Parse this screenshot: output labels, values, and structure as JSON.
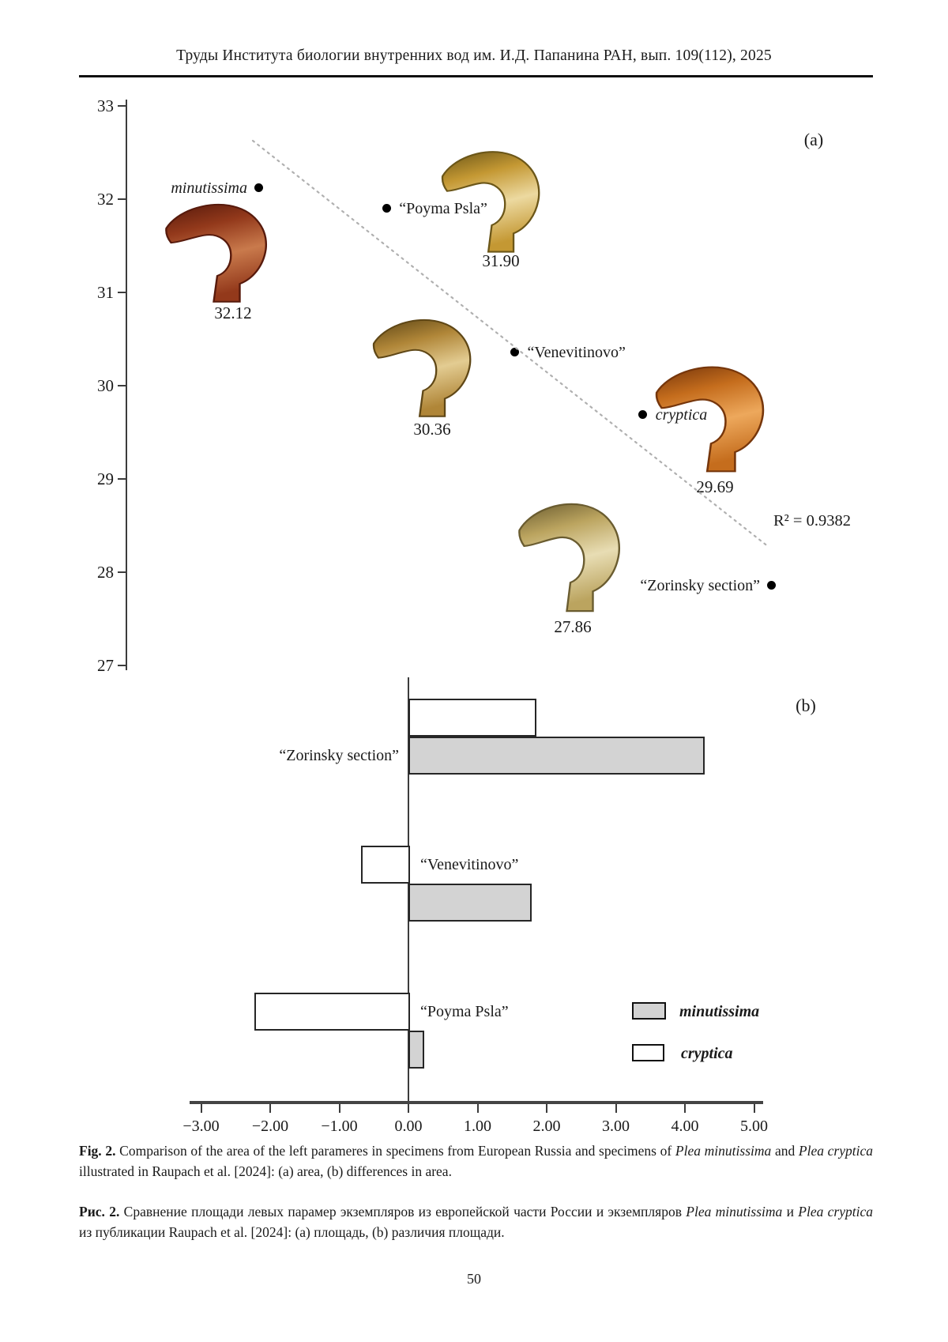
{
  "header": {
    "journal_line": "Труды Института биологии внутренних вод им. И.Д. Папанина РАН, вып. 109(112), 2025"
  },
  "page_number": "50",
  "panel_a": {
    "tag": "(a)",
    "r_squared": "R² = 0.9382",
    "y_ticks": [
      "33",
      "32",
      "31",
      "30",
      "29",
      "28",
      "27"
    ],
    "points": [
      {
        "label": "minutissima",
        "italic": true,
        "side": "left",
        "value": 32.12,
        "value_label": "32.12",
        "specimen": "minutissima-paramere"
      },
      {
        "label": "“Poyma Psla”",
        "italic": false,
        "side": "right",
        "value": 31.9,
        "value_label": "31.90",
        "specimen": "poyma-psla-paramere"
      },
      {
        "label": "“Venevitinovo”",
        "italic": false,
        "side": "right",
        "value": 30.36,
        "value_label": "30.36",
        "specimen": "venevitinovo-paramere"
      },
      {
        "label": "cryptica",
        "italic": true,
        "side": "right",
        "value": 29.69,
        "value_label": "29.69",
        "specimen": "cryptica-paramere"
      },
      {
        "label": "“Zorinsky section”",
        "italic": false,
        "side": "left",
        "value": 27.86,
        "value_label": "27.86",
        "specimen": "zorinsky-paramere"
      }
    ]
  },
  "panel_b": {
    "tag": "(b)",
    "x_tick_values": [
      -3,
      -2,
      -1,
      0,
      1,
      2,
      3,
      4,
      5
    ],
    "x_ticks": [
      "−3.00",
      "−2.00",
      "−1.00",
      "0.00",
      "1.00",
      "2.00",
      "3.00",
      "4.00",
      "5.00"
    ],
    "categories": [
      {
        "label": "“Zorinsky section”",
        "cryptica": 1.83,
        "minutissima": 4.26
      },
      {
        "label": "“Venevitinovo”",
        "cryptica": -0.69,
        "minutissima": 1.76
      },
      {
        "label": "“Poyma Psla”",
        "cryptica": -2.23,
        "minutissima": 0.21
      }
    ],
    "legend": [
      {
        "label": "minutissima",
        "fill": "#d3d3d3"
      },
      {
        "label": "cryptica",
        "fill": "#ffffff"
      }
    ]
  },
  "colors": {
    "bar_gray": "#d3d3d3",
    "bar_border": "#262626",
    "axis": "#3c3c3c",
    "trendline": "#b0b0b0",
    "dot": "#000000"
  },
  "specimen_colors": [
    {
      "name": "minutissima-paramere",
      "edge": "#571a0c",
      "body": "#93391b",
      "light": "#c97a4c"
    },
    {
      "name": "poyma-psla-paramere",
      "edge": "#6b5618",
      "body": "#c49833",
      "light": "#ecd9a0"
    },
    {
      "name": "venevitinovo-paramere",
      "edge": "#5f4716",
      "body": "#b08638",
      "light": "#e3cc92"
    },
    {
      "name": "cryptica-paramere",
      "edge": "#76360b",
      "body": "#c56d1d",
      "light": "#eda85c"
    },
    {
      "name": "zorinsky-paramere",
      "edge": "#6a5c30",
      "body": "#bba45f",
      "light": "#e8ddb4"
    }
  ],
  "caption_en": [
    {
      "t": "Fig. 2.",
      "b": true
    },
    {
      "t": " Comparison of the area of the left parameres in specimens from European Russia and specimens of "
    },
    {
      "t": "Plea minutissima",
      "i": true
    },
    {
      "t": " and "
    },
    {
      "t": "Plea cryptica",
      "i": true
    },
    {
      "t": " illustrated in Raupach et al. [2024]: (a) area, (b) differences in area."
    }
  ],
  "caption_ru": [
    {
      "t": "Рис. 2.",
      "b": true
    },
    {
      "t": " Сравнение площади левых парамер экземпляров из европейской части России и экземпляров "
    },
    {
      "t": "Plea minutissima",
      "i": true
    },
    {
      "t": " и "
    },
    {
      "t": "Plea cryptica",
      "i": true
    },
    {
      "t": " из публикации Raupach et al. [2024]: (a) площадь, (b) различия площади."
    }
  ],
  "chart_data": [
    {
      "type": "scatter",
      "title": "(a) area of left paramere",
      "ylim": [
        27,
        33
      ],
      "y_ticks": [
        33,
        32,
        31,
        30,
        29,
        28,
        27
      ],
      "points": [
        {
          "label": "minutissima",
          "y": 32.12
        },
        {
          "label": "Poyma Psla",
          "y": 31.9
        },
        {
          "label": "Venevitinovo",
          "y": 30.36
        },
        {
          "label": "cryptica",
          "y": 29.69
        },
        {
          "label": "Zorinsky section",
          "y": 27.86
        }
      ],
      "trendline": {
        "r_squared": 0.9382,
        "style": "dotted"
      }
    },
    {
      "type": "bar",
      "orientation": "horizontal",
      "title": "(b) differences in area",
      "categories": [
        "Zorinsky section",
        "Venevitinovo",
        "Poyma Psla"
      ],
      "series": [
        {
          "name": "cryptica",
          "values": [
            1.83,
            -0.69,
            -2.23
          ]
        },
        {
          "name": "minutissima",
          "values": [
            4.26,
            1.76,
            0.21
          ]
        }
      ],
      "xlim": [
        -3,
        5
      ],
      "xticks": [
        -3,
        -2,
        -1,
        0,
        1,
        2,
        3,
        4,
        5
      ],
      "legend_position": "right",
      "grid": false
    }
  ]
}
